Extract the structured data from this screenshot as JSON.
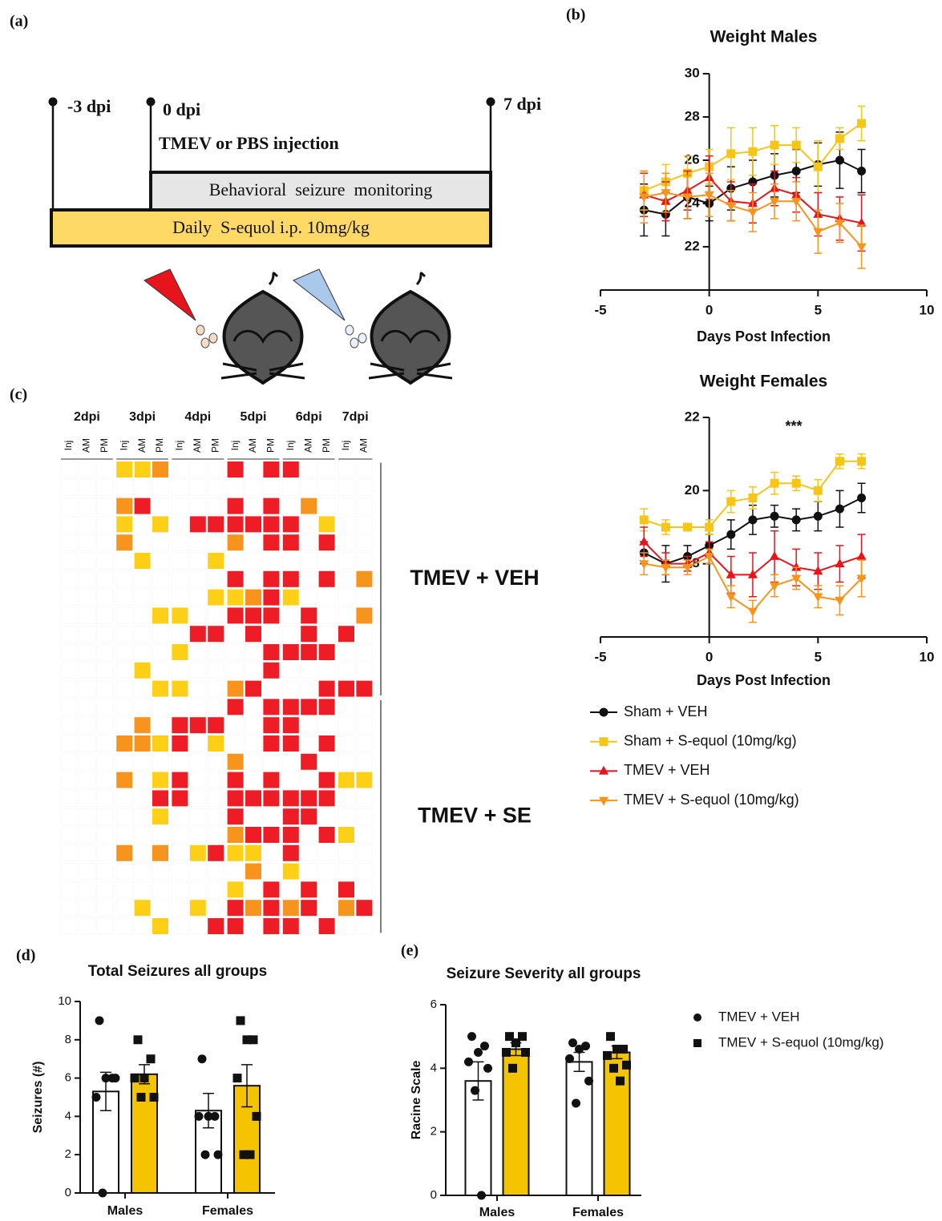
{
  "panel_labels": [
    "(a)",
    "(b)",
    "(c)",
    "(d)",
    "(e)"
  ],
  "timeline": {
    "start": "-3 dpi",
    "injection_day": "0 dpi",
    "injection": "TMEV or PBS injection",
    "end": "7 dpi",
    "monitoring": "Behavioral  seizure  monitoring",
    "treatment": "Daily  S-equol i.p. 10mg/kg"
  },
  "chart_data": [
    {
      "type": "line",
      "title": "Weight Males",
      "x_label": "Days Post Infection",
      "x": [
        -3,
        -2,
        -1,
        0,
        1,
        2,
        3,
        4,
        5,
        6,
        7
      ],
      "xlim": [
        -5,
        10
      ],
      "xticks": [
        -5,
        0,
        5,
        10
      ],
      "ylim": [
        20,
        30
      ],
      "yticks": [
        22,
        24,
        26,
        28,
        30
      ],
      "grid": false,
      "series": [
        {
          "color": "#111111",
          "marker": "circle",
          "values": [
            23.7,
            23.5,
            24.3,
            24.0,
            24.7,
            25.0,
            25.3,
            25.5,
            25.8,
            26.0,
            25.5
          ],
          "errors": [
            1.2,
            1.0,
            1.0,
            0.8,
            1.0,
            1.0,
            1.0,
            1.0,
            1.0,
            1.3,
            1.0
          ]
        },
        {
          "color": "#f5c518",
          "marker": "square",
          "values": [
            24.6,
            25.0,
            25.4,
            25.7,
            26.3,
            26.4,
            26.7,
            26.7,
            25.7,
            27.0,
            27.7
          ],
          "errors": [
            0.9,
            0.8,
            0.8,
            0.8,
            1.2,
            1.1,
            0.9,
            0.8,
            1.2,
            0.5,
            0.8
          ]
        },
        {
          "color": "#e8141c",
          "marker": "triangle-up",
          "values": [
            24.4,
            24.1,
            24.6,
            25.2,
            24.1,
            24.0,
            24.7,
            24.4,
            23.5,
            23.3,
            23.1
          ],
          "errors": [
            1.0,
            0.9,
            0.9,
            1.0,
            0.9,
            0.9,
            0.8,
            0.8,
            1.0,
            1.0,
            1.3
          ]
        },
        {
          "color": "#f7941d",
          "marker": "triangle-down",
          "values": [
            24.3,
            24.5,
            24.3,
            24.4,
            23.9,
            23.6,
            24.1,
            24.1,
            22.7,
            23.1,
            22.0
          ],
          "errors": [
            1.2,
            0.9,
            1.0,
            1.0,
            0.7,
            0.9,
            0.8,
            0.9,
            1.0,
            0.9,
            1.0
          ]
        }
      ]
    },
    {
      "type": "line",
      "title": "Weight Females",
      "x_label": "Days Post Infection",
      "annotation": "***",
      "x": [
        -3,
        -2,
        -1,
        0,
        1,
        2,
        3,
        4,
        5,
        6,
        7
      ],
      "xlim": [
        -5,
        10
      ],
      "xticks": [
        -5,
        0,
        5,
        10
      ],
      "ylim": [
        16,
        22
      ],
      "yticks": [
        18,
        20,
        22
      ],
      "grid": false,
      "series": [
        {
          "name": "Sham + VEH",
          "color": "#111111",
          "marker": "circle",
          "values": [
            18.3,
            18.0,
            18.2,
            18.5,
            18.8,
            19.2,
            19.3,
            19.2,
            19.3,
            19.5,
            19.8
          ],
          "errors": [
            0.3,
            0.5,
            0.3,
            0.3,
            0.4,
            0.4,
            0.3,
            0.3,
            0.4,
            0.5,
            0.4
          ]
        },
        {
          "name": "Sham + S-equol (10mg/kg)",
          "color": "#f5c518",
          "marker": "square",
          "values": [
            19.2,
            19.0,
            19.0,
            19.0,
            19.7,
            19.8,
            20.2,
            20.2,
            20.0,
            20.8,
            20.8
          ],
          "errors": [
            0.3,
            0.2,
            0.1,
            0.2,
            0.3,
            0.3,
            0.3,
            0.2,
            0.3,
            0.2,
            0.2
          ]
        },
        {
          "name": "TMEV + VEH",
          "color": "#e8141c",
          "marker": "triangle-up",
          "values": [
            18.6,
            18.0,
            18.0,
            18.3,
            17.7,
            17.7,
            18.2,
            17.9,
            17.8,
            18.0,
            18.2
          ],
          "errors": [
            0.4,
            0.3,
            0.2,
            0.3,
            0.5,
            0.6,
            0.7,
            0.5,
            0.5,
            0.5,
            0.6
          ]
        },
        {
          "name": "TMEV + S-equol (10mg/kg)",
          "color": "#f7941d",
          "marker": "triangle-down",
          "values": [
            18.0,
            17.9,
            17.9,
            18.2,
            17.1,
            16.7,
            17.4,
            17.6,
            17.1,
            17.0,
            17.6
          ],
          "errors": [
            0.3,
            0.2,
            0.2,
            0.2,
            0.3,
            0.3,
            0.3,
            0.3,
            0.3,
            0.4,
            0.5
          ]
        }
      ]
    },
    {
      "type": "heatmap",
      "colors": [
        "#ffffff",
        "#fdd017",
        "#f7941d",
        "#ee1c25"
      ],
      "days": [
        {
          "label": "2dpi",
          "slots": [
            "Inj",
            "AM",
            "PM"
          ]
        },
        {
          "label": "3dpi",
          "slots": [
            "Inj",
            "AM",
            "PM"
          ]
        },
        {
          "label": "4dpi",
          "slots": [
            "Inj",
            "AM",
            "PM"
          ]
        },
        {
          "label": "5dpi",
          "slots": [
            "Inj",
            "AM",
            "PM"
          ]
        },
        {
          "label": "6dpi",
          "slots": [
            "Inj",
            "AM",
            "PM"
          ]
        },
        {
          "label": "7dpi",
          "slots": [
            "Inj",
            "AM"
          ]
        }
      ],
      "groups": [
        {
          "label": "TMEV + VEH",
          "rows": [
            [
              0,
              0,
              0,
              1,
              1,
              2,
              0,
              0,
              0,
              3,
              0,
              3,
              3,
              0,
              0,
              0,
              0
            ],
            [
              0,
              0,
              0,
              0,
              0,
              0,
              0,
              0,
              0,
              0,
              0,
              0,
              0,
              0,
              0,
              0,
              0
            ],
            [
              0,
              0,
              0,
              2,
              3,
              0,
              0,
              0,
              0,
              3,
              0,
              3,
              0,
              2,
              0,
              0,
              0
            ],
            [
              0,
              0,
              0,
              1,
              0,
              1,
              0,
              3,
              3,
              3,
              3,
              3,
              3,
              0,
              1,
              0,
              0
            ],
            [
              0,
              0,
              0,
              2,
              0,
              0,
              0,
              0,
              0,
              2,
              0,
              3,
              3,
              0,
              3,
              0,
              0
            ],
            [
              0,
              0,
              0,
              0,
              1,
              0,
              0,
              0,
              1,
              0,
              0,
              0,
              0,
              0,
              0,
              0,
              0
            ],
            [
              0,
              0,
              0,
              0,
              0,
              0,
              0,
              0,
              0,
              3,
              0,
              3,
              3,
              0,
              3,
              0,
              2
            ],
            [
              0,
              0,
              0,
              0,
              0,
              0,
              0,
              0,
              1,
              1,
              2,
              3,
              1,
              0,
              0,
              0,
              0
            ],
            [
              0,
              0,
              0,
              0,
              0,
              1,
              1,
              0,
              0,
              3,
              3,
              3,
              0,
              3,
              0,
              0,
              2
            ],
            [
              0,
              0,
              0,
              0,
              0,
              0,
              0,
              3,
              3,
              0,
              3,
              0,
              0,
              3,
              0,
              3,
              0
            ],
            [
              0,
              0,
              0,
              0,
              0,
              0,
              1,
              0,
              0,
              0,
              0,
              3,
              3,
              3,
              3,
              0,
              0
            ],
            [
              0,
              0,
              0,
              0,
              1,
              0,
              0,
              0,
              0,
              0,
              0,
              3,
              0,
              0,
              0,
              0,
              0
            ],
            [
              0,
              0,
              0,
              0,
              0,
              1,
              1,
              0,
              0,
              2,
              3,
              0,
              0,
              0,
              3,
              3,
              3
            ]
          ]
        },
        {
          "label": "TMEV + SE",
          "rows": [
            [
              0,
              0,
              0,
              0,
              0,
              0,
              0,
              0,
              0,
              3,
              0,
              3,
              3,
              3,
              3,
              0,
              0
            ],
            [
              0,
              0,
              0,
              0,
              2,
              0,
              3,
              3,
              3,
              0,
              0,
              3,
              3,
              0,
              0,
              0,
              0
            ],
            [
              0,
              0,
              0,
              2,
              2,
              1,
              3,
              0,
              1,
              0,
              0,
              3,
              3,
              0,
              3,
              0,
              0
            ],
            [
              0,
              0,
              0,
              0,
              0,
              0,
              0,
              0,
              0,
              2,
              0,
              0,
              0,
              3,
              0,
              0,
              0
            ],
            [
              0,
              0,
              0,
              2,
              0,
              1,
              3,
              0,
              0,
              3,
              0,
              3,
              0,
              0,
              3,
              1,
              1
            ],
            [
              0,
              0,
              0,
              0,
              0,
              3,
              3,
              0,
              0,
              3,
              3,
              3,
              3,
              3,
              3,
              0,
              0
            ],
            [
              0,
              0,
              0,
              0,
              0,
              1,
              0,
              0,
              0,
              3,
              0,
              0,
              3,
              3,
              0,
              0,
              0
            ],
            [
              0,
              0,
              0,
              0,
              0,
              0,
              0,
              0,
              0,
              2,
              3,
              3,
              3,
              0,
              3,
              1,
              0
            ],
            [
              0,
              0,
              0,
              2,
              0,
              2,
              0,
              1,
              3,
              1,
              1,
              0,
              3,
              0,
              0,
              0,
              0
            ],
            [
              0,
              0,
              0,
              0,
              0,
              0,
              0,
              0,
              0,
              0,
              2,
              0,
              1,
              0,
              0,
              0,
              0
            ],
            [
              0,
              0,
              0,
              0,
              0,
              0,
              0,
              0,
              0,
              1,
              0,
              3,
              0,
              3,
              0,
              3,
              0
            ],
            [
              0,
              0,
              0,
              0,
              1,
              0,
              0,
              1,
              0,
              3,
              2,
              3,
              2,
              3,
              0,
              2,
              3
            ],
            [
              0,
              0,
              0,
              0,
              0,
              1,
              0,
              0,
              3,
              3,
              0,
              3,
              3,
              0,
              3,
              0,
              0
            ]
          ]
        }
      ]
    },
    {
      "type": "bar",
      "title": "Total Seizures all groups",
      "y_label": "Seizures (#)",
      "categories": [
        "Males",
        "Females"
      ],
      "ylim": [
        0,
        10
      ],
      "yticks": [
        0,
        2,
        4,
        6,
        8,
        10
      ],
      "grid": false,
      "series": [
        {
          "color": "#ffffff",
          "marker": "circle",
          "values": [
            5.3,
            4.3
          ],
          "errors": [
            1.0,
            0.9
          ],
          "points": [
            [
              9,
              6,
              6,
              5,
              6,
              0
            ],
            [
              7,
              4,
              4,
              4,
              2,
              2
            ]
          ]
        },
        {
          "color": "#f5c400",
          "marker": "square",
          "values": [
            6.2,
            5.6
          ],
          "errors": [
            0.5,
            1.1
          ],
          "points": [
            [
              8,
              7,
              6,
              6,
              5,
              5
            ],
            [
              9,
              8,
              8,
              6,
              4,
              2,
              2
            ]
          ]
        }
      ]
    },
    {
      "type": "bar",
      "title": "Seizure Severity all groups",
      "y_label": "Racine Scale",
      "categories": [
        "Males",
        "Females"
      ],
      "ylim": [
        0,
        6
      ],
      "yticks": [
        0,
        2,
        4,
        6
      ],
      "grid": false,
      "series": [
        {
          "name": "TMEV + VEH",
          "color": "#ffffff",
          "marker": "circle",
          "values": [
            3.6,
            4.2
          ],
          "errors": [
            0.6,
            0.3
          ],
          "points": [
            [
              5,
              4.7,
              4.5,
              4.2,
              4,
              3.3,
              0
            ],
            [
              4.8,
              4.7,
              4.6,
              4.3,
              3.6,
              2.9
            ]
          ]
        },
        {
          "name": "TMEV + S-equol (10mg/kg)",
          "color": "#f5c400",
          "marker": "square",
          "values": [
            4.6,
            4.5
          ],
          "errors": [
            0.2,
            0.2
          ],
          "points": [
            [
              5,
              5,
              4.8,
              4.5,
              4.5,
              4
            ],
            [
              5,
              4.6,
              4.6,
              4.4,
              4.1,
              4,
              3.6
            ]
          ]
        }
      ]
    }
  ]
}
